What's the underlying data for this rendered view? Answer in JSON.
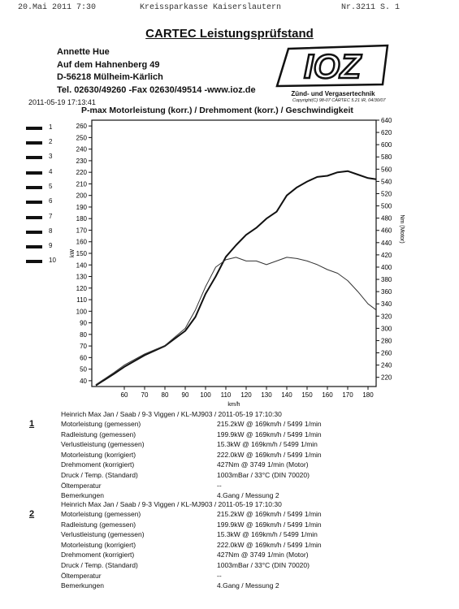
{
  "fax": {
    "date": "20.Mai 2011  7:30",
    "sender": "Kreissparkasse Kaiserslautern",
    "number": "Nr.3211  S. 1"
  },
  "title": "CARTEC Leistungsprüfstand",
  "address": {
    "name": "Annette Hue",
    "street": "Auf dem Hahnenberg 49",
    "city": "D-56218 Mülheim-Kärlich",
    "contact": "Tel. 02630/49260 -Fax 02630/49514 -www.ioz.de"
  },
  "logo": {
    "text": "IOZ",
    "tagline": "Zünd- und Vergasertechnik"
  },
  "copyright": "Copyright(C) 98-07 CARTEC 5.21 IR, 04/30/07",
  "timestamp": "2011-05-19 17:13:41",
  "chart_title": "P-max Motorleistung (korr.) / Drehmoment (korr.) / Geschwindigkeit",
  "legend": [
    "1",
    "2",
    "3",
    "4",
    "5",
    "6",
    "7",
    "8",
    "9",
    "10"
  ],
  "chart_data": {
    "type": "line",
    "xlabel": "km/h",
    "ylabel_left": "kW",
    "ylabel_right": "Nm (Motor)",
    "xlim": [
      44,
      184
    ],
    "ylim_left": [
      35,
      265
    ],
    "ylim_right": [
      205,
      640
    ],
    "x_ticks": [
      60,
      70,
      80,
      90,
      100,
      110,
      120,
      130,
      140,
      150,
      160,
      170,
      180
    ],
    "y_left_ticks": [
      40,
      50,
      60,
      70,
      80,
      90,
      100,
      110,
      120,
      130,
      140,
      150,
      160,
      170,
      180,
      190,
      200,
      210,
      220,
      230,
      240,
      250,
      260
    ],
    "y_right_ticks": [
      220,
      240,
      260,
      280,
      300,
      320,
      340,
      360,
      380,
      400,
      420,
      440,
      460,
      480,
      500,
      520,
      540,
      560,
      580,
      600,
      620,
      640
    ],
    "series": [
      {
        "axis": "left",
        "color": "#111111",
        "x": [
          46,
          55,
          60,
          70,
          80,
          90,
          95,
          100,
          105,
          110,
          115,
          120,
          125,
          130,
          135,
          140,
          145,
          150,
          155,
          160,
          165,
          170,
          175,
          180,
          184
        ],
        "y": [
          36,
          46,
          52,
          62,
          70,
          83,
          95,
          115,
          130,
          147,
          157,
          166,
          172,
          180,
          186,
          200,
          207,
          212,
          216,
          217,
          220,
          221,
          218,
          215,
          214
        ]
      },
      {
        "axis": "right",
        "color": "#333333",
        "x": [
          46,
          55,
          60,
          70,
          80,
          90,
          95,
          100,
          105,
          110,
          115,
          120,
          125,
          130,
          135,
          140,
          145,
          150,
          155,
          160,
          165,
          170,
          175,
          180,
          184
        ],
        "y": [
          208,
          228,
          240,
          258,
          272,
          300,
          330,
          368,
          400,
          412,
          416,
          410,
          410,
          404,
          410,
          416,
          414,
          410,
          404,
          396,
          390,
          378,
          360,
          340,
          330
        ]
      }
    ]
  },
  "runs": [
    {
      "index": "1",
      "header": "Heinrich Max Jan / Saab / 9-3 Viggen / KL-MJ903 / 2011-05-19 17:10:30",
      "rows": [
        {
          "label": "Motorleistung (gemessen)",
          "value": "215.2kW @ 169km/h / 5499 1/min"
        },
        {
          "label": "Radleistung (gemessen)",
          "value": "199.9kW @ 169km/h / 5499 1/min"
        },
        {
          "label": "Verlustleistung (gemessen)",
          "value": "15.3kW @ 169km/h / 5499 1/min"
        },
        {
          "label": "Motorleistung (korrigiert)",
          "value": "222.0kW @ 169km/h / 5499 1/min"
        },
        {
          "label": "Drehmoment (korrigiert)",
          "value": "427Nm @ 3749 1/min (Motor)"
        },
        {
          "label": "Druck / Temp. (Standard)",
          "value": "1003mBar / 33°C  (DIN 70020)"
        },
        {
          "label": "Öltemperatur",
          "value": "--"
        },
        {
          "label": "Bemerkungen",
          "value": "4.Gang / Messung 2"
        }
      ]
    },
    {
      "index": "2",
      "header": "Heinrich Max Jan / Saab / 9-3 Viggen / KL-MJ903 / 2011-05-19 17:10:30",
      "rows": [
        {
          "label": "Motorleistung (gemessen)",
          "value": "215.2kW @ 169km/h / 5499 1/min"
        },
        {
          "label": "Radleistung (gemessen)",
          "value": "199.9kW @ 169km/h / 5499 1/min"
        },
        {
          "label": "Verlustleistung (gemessen)",
          "value": "15.3kW @ 169km/h / 5499 1/min"
        },
        {
          "label": "Motorleistung (korrigiert)",
          "value": "222.0kW @ 169km/h / 5499 1/min"
        },
        {
          "label": "Drehmoment (korrigiert)",
          "value": "427Nm @ 3749 1/min (Motor)"
        },
        {
          "label": "Druck / Temp. (Standard)",
          "value": "1003mBar / 33°C  (DIN 70020)"
        },
        {
          "label": "Öltemperatur",
          "value": "--"
        },
        {
          "label": "Bemerkungen",
          "value": "4.Gang / Messung 2"
        }
      ]
    }
  ]
}
